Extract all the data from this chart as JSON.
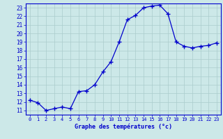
{
  "x": [
    0,
    1,
    2,
    3,
    4,
    5,
    6,
    7,
    8,
    9,
    10,
    11,
    12,
    13,
    14,
    15,
    16,
    17,
    18,
    19,
    20,
    21,
    22,
    23
  ],
  "y": [
    12.2,
    11.9,
    11.0,
    11.2,
    11.4,
    11.2,
    13.2,
    13.3,
    14.0,
    15.5,
    16.7,
    19.0,
    21.6,
    22.1,
    23.0,
    23.2,
    23.3,
    22.3,
    19.0,
    18.5,
    18.3,
    18.5,
    18.6,
    18.9
  ],
  "line_color": "#0000cc",
  "marker": "+",
  "marker_size": 4,
  "bg_color": "#cce8e8",
  "grid_color": "#aacccc",
  "xlabel": "Graphe des températures (°c)",
  "xlabel_color": "#0000cc",
  "tick_color": "#0000cc",
  "ylabel_ticks": [
    11,
    12,
    13,
    14,
    15,
    16,
    17,
    18,
    19,
    20,
    21,
    22,
    23
  ],
  "xlim": [
    -0.5,
    23.5
  ],
  "ylim": [
    10.5,
    23.5
  ]
}
